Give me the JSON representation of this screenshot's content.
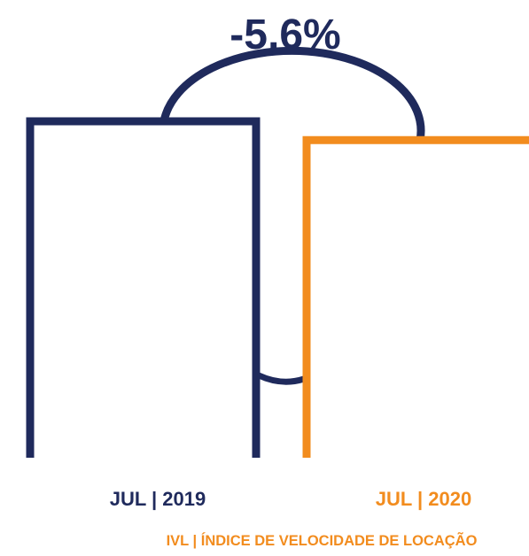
{
  "colors": {
    "series_2019": "#1f2a5c",
    "series_2020": "#f28c1e",
    "text_dark": "#1f2a5c",
    "text_accent": "#f28c1e"
  },
  "chart_data": {
    "type": "bar",
    "categories": [
      "JUL | 2019",
      "JUL | 2020"
    ],
    "values": [
      100,
      94.4
    ],
    "change_label": "-5,6%",
    "subtitle": "IVL | ÍNDICE DE VELOCIDADE DE LOCAÇÃO",
    "ylim": [
      0,
      100
    ],
    "grid": false,
    "legend": "none"
  }
}
